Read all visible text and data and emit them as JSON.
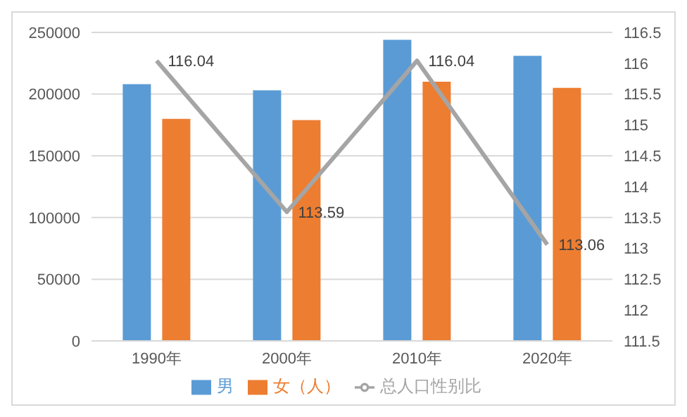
{
  "chart_data": {
    "type": "bar",
    "categories": [
      "1990年",
      "2000年",
      "2010年",
      "2020年"
    ],
    "series": [
      {
        "name": "男",
        "color": "#5b9bd5",
        "values": [
          208000,
          203000,
          244000,
          231000
        ]
      },
      {
        "name": "女（人）",
        "color": "#ed7d31",
        "values": [
          180000,
          179000,
          210000,
          205000
        ]
      },
      {
        "name": "总人口性别比",
        "type": "line",
        "axis": "y2",
        "color": "#a5a5a5",
        "values": [
          116.04,
          113.59,
          116.04,
          113.06
        ],
        "value_labels": [
          "116.04",
          "113.59",
          "116.04",
          "113.06"
        ]
      }
    ],
    "ylim": [
      0,
      250000
    ],
    "yticks": [
      0,
      50000,
      100000,
      150000,
      200000,
      250000
    ],
    "y2lim": [
      111.5,
      116.5
    ],
    "y2ticks": [
      111.5,
      112,
      112.5,
      113,
      113.5,
      114,
      114.5,
      115,
      115.5,
      116,
      116.5
    ],
    "grid": "y",
    "legend": "bottom",
    "marker": "none"
  }
}
